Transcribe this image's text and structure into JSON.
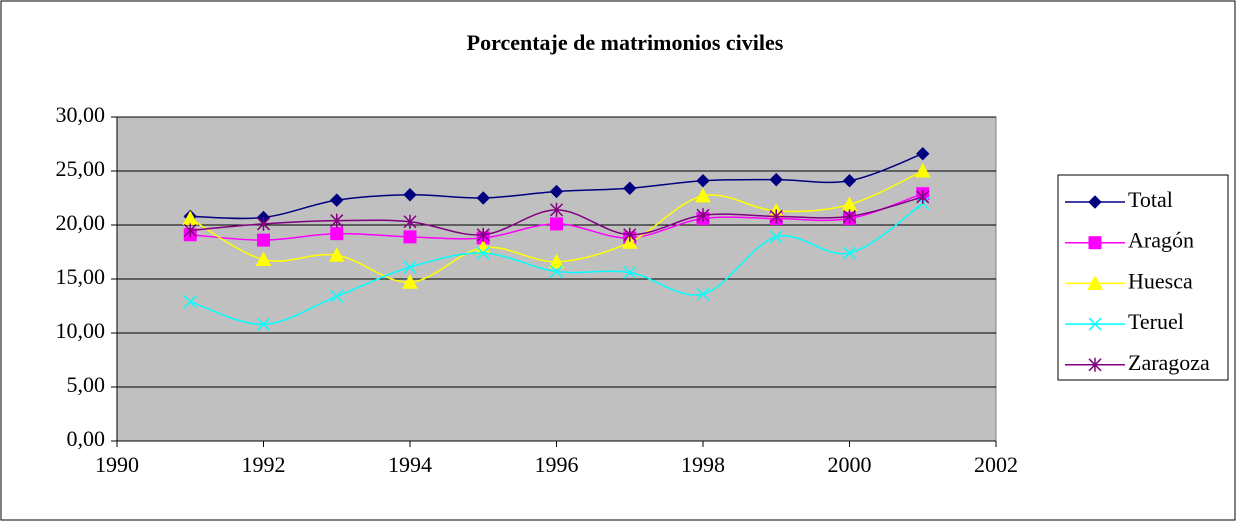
{
  "chart_data": {
    "type": "line",
    "title": "Porcentaje de matrimonios civiles",
    "x": [
      1991,
      1992,
      1993,
      1994,
      1995,
      1996,
      1997,
      1998,
      1999,
      2000,
      2001
    ],
    "series": [
      {
        "name": "Total",
        "color": "#000080",
        "marker": "diamond",
        "values": [
          20.8,
          20.7,
          22.3,
          22.8,
          22.5,
          23.1,
          23.4,
          24.1,
          24.2,
          24.1,
          26.6
        ]
      },
      {
        "name": "Aragón",
        "color": "#FF00FF",
        "marker": "square",
        "values": [
          19.1,
          18.6,
          19.2,
          18.9,
          18.8,
          20.1,
          18.8,
          20.6,
          20.6,
          20.6,
          22.9
        ]
      },
      {
        "name": "Huesca",
        "color": "#FFFF00",
        "marker": "triangle",
        "values": [
          20.6,
          16.8,
          17.2,
          14.7,
          17.9,
          16.6,
          18.4,
          22.7,
          21.3,
          21.9,
          25.0
        ]
      },
      {
        "name": "Teruel",
        "color": "#00FFFF",
        "marker": "x",
        "values": [
          12.9,
          10.8,
          13.4,
          16.1,
          17.4,
          15.7,
          15.6,
          13.6,
          18.9,
          17.4,
          22.0
        ]
      },
      {
        "name": "Zaragoza",
        "color": "#800080",
        "marker": "star",
        "values": [
          19.5,
          20.1,
          20.4,
          20.3,
          19.1,
          21.4,
          19.1,
          20.9,
          20.8,
          20.8,
          22.6
        ]
      }
    ],
    "xlim": [
      1990,
      2002
    ],
    "xticks": [
      1990,
      1992,
      1994,
      1996,
      1998,
      2000,
      2002
    ],
    "ylim": [
      0,
      30
    ],
    "yticks": [
      {
        "value": 0,
        "label": "0,00"
      },
      {
        "value": 5,
        "label": "5,00"
      },
      {
        "value": 10,
        "label": "10,00"
      },
      {
        "value": 15,
        "label": "15,00"
      },
      {
        "value": 20,
        "label": "20,00"
      },
      {
        "value": 25,
        "label": "25,00"
      },
      {
        "value": 30,
        "label": "30,00"
      }
    ],
    "grid": true,
    "smooth": true,
    "legend": "right"
  }
}
